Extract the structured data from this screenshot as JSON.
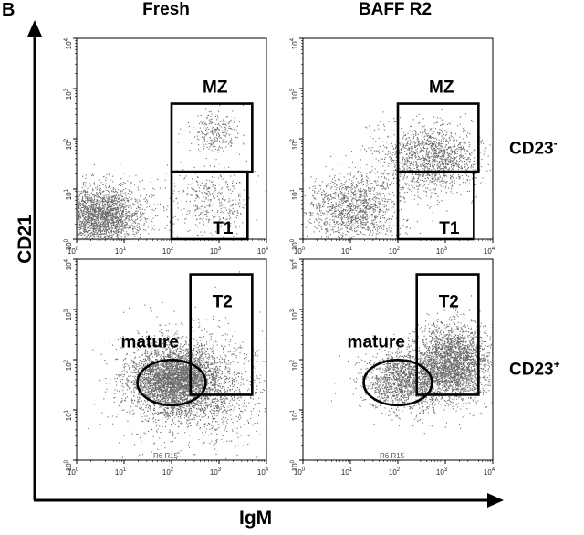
{
  "panel_label": "B",
  "columns": [
    "Fresh",
    "BAFF R2"
  ],
  "rows": [
    {
      "label": "CD23",
      "superscript": "-"
    },
    {
      "label": "CD23",
      "superscript": "+"
    }
  ],
  "x_axis_title": "IgM",
  "y_axis_title": "CD21",
  "chart_data": [
    {
      "type": "scatter",
      "panel": "Fresh / CD23-",
      "xlabel": "IgM",
      "ylabel": "CD21",
      "xscale": "log",
      "yscale": "log",
      "xlim": [
        1,
        10000
      ],
      "ylim": [
        1,
        10000
      ],
      "x_tick_labels": [
        "10^0",
        "10^1",
        "10^2",
        "10^3",
        "10^4"
      ],
      "y_tick_labels": [
        "10^0",
        "10^1",
        "10^2",
        "10^3",
        "10^4"
      ],
      "gates": [
        {
          "name": "MZ",
          "shape": "rect",
          "x": [
            100,
            5000
          ],
          "y": [
            22,
            500
          ]
        },
        {
          "name": "T1",
          "shape": "rect",
          "x": [
            100,
            4000
          ],
          "y": [
            1,
            22
          ]
        }
      ],
      "populations": [
        {
          "center": [
            3,
            3
          ],
          "spread": [
            0.45,
            0.3
          ],
          "count": 2400
        },
        {
          "center": [
            800,
            130
          ],
          "spread": [
            0.25,
            0.2
          ],
          "count": 260
        },
        {
          "center": [
            600,
            6
          ],
          "spread": [
            0.45,
            0.35
          ],
          "count": 420
        }
      ]
    },
    {
      "type": "scatter",
      "panel": "BAFF R2 / CD23-",
      "xlabel": "IgM",
      "ylabel": "CD21",
      "xscale": "log",
      "yscale": "log",
      "xlim": [
        1,
        10000
      ],
      "ylim": [
        1,
        10000
      ],
      "x_tick_labels": [
        "10^0",
        "10^1",
        "10^2",
        "10^3",
        "10^4"
      ],
      "y_tick_labels": [
        "10^0",
        "10^1",
        "10^2",
        "10^3",
        "10^4"
      ],
      "gates": [
        {
          "name": "MZ",
          "shape": "rect",
          "x": [
            100,
            5000
          ],
          "y": [
            22,
            500
          ]
        },
        {
          "name": "T1",
          "shape": "rect",
          "x": [
            100,
            4000
          ],
          "y": [
            1,
            22
          ]
        }
      ],
      "populations": [
        {
          "center": [
            12,
            4
          ],
          "spread": [
            0.5,
            0.35
          ],
          "count": 1300
        },
        {
          "center": [
            500,
            40
          ],
          "spread": [
            0.55,
            0.35
          ],
          "count": 1500
        }
      ]
    },
    {
      "type": "scatter",
      "panel": "Fresh / CD23+",
      "xlabel": "IgM",
      "ylabel": "CD21",
      "xscale": "log",
      "yscale": "log",
      "xlim": [
        1,
        10000
      ],
      "ylim": [
        1,
        10000
      ],
      "x_tick_labels": [
        "10^0",
        "10^1",
        "10^2",
        "10^3",
        "10^4"
      ],
      "y_tick_labels": [
        "10^0",
        "10^1",
        "10^2",
        "10^3",
        "10^4"
      ],
      "gates": [
        {
          "name": "mature",
          "shape": "ellipse",
          "center": [
            100,
            35
          ],
          "log_radius": [
            0.72,
            0.45
          ]
        },
        {
          "name": "T2",
          "shape": "rect",
          "x": [
            250,
            5000
          ],
          "y": [
            20,
            5000
          ]
        }
      ],
      "populations": [
        {
          "center": [
            120,
            40
          ],
          "spread": [
            0.45,
            0.33
          ],
          "count": 3600
        },
        {
          "center": [
            300,
            30
          ],
          "spread": [
            0.8,
            0.6
          ],
          "count": 1600
        }
      ],
      "stamp": "R6  R15"
    },
    {
      "type": "scatter",
      "panel": "BAFF R2 / CD23+",
      "xlabel": "IgM",
      "ylabel": "CD21",
      "xscale": "log",
      "yscale": "log",
      "xlim": [
        1,
        10000
      ],
      "ylim": [
        1,
        10000
      ],
      "x_tick_labels": [
        "10^0",
        "10^1",
        "10^2",
        "10^3",
        "10^4"
      ],
      "y_tick_labels": [
        "10^0",
        "10^1",
        "10^2",
        "10^3",
        "10^4"
      ],
      "gates": [
        {
          "name": "mature",
          "shape": "ellipse",
          "center": [
            100,
            35
          ],
          "log_radius": [
            0.72,
            0.45
          ]
        },
        {
          "name": "T2",
          "shape": "rect",
          "x": [
            250,
            5000
          ],
          "y": [
            20,
            5000
          ]
        }
      ],
      "populations": [
        {
          "center": [
            150,
            40
          ],
          "spread": [
            0.45,
            0.3
          ],
          "count": 1700
        },
        {
          "center": [
            1500,
            90
          ],
          "spread": [
            0.4,
            0.38
          ],
          "count": 2600
        }
      ],
      "stamp": "R6  R15"
    }
  ]
}
